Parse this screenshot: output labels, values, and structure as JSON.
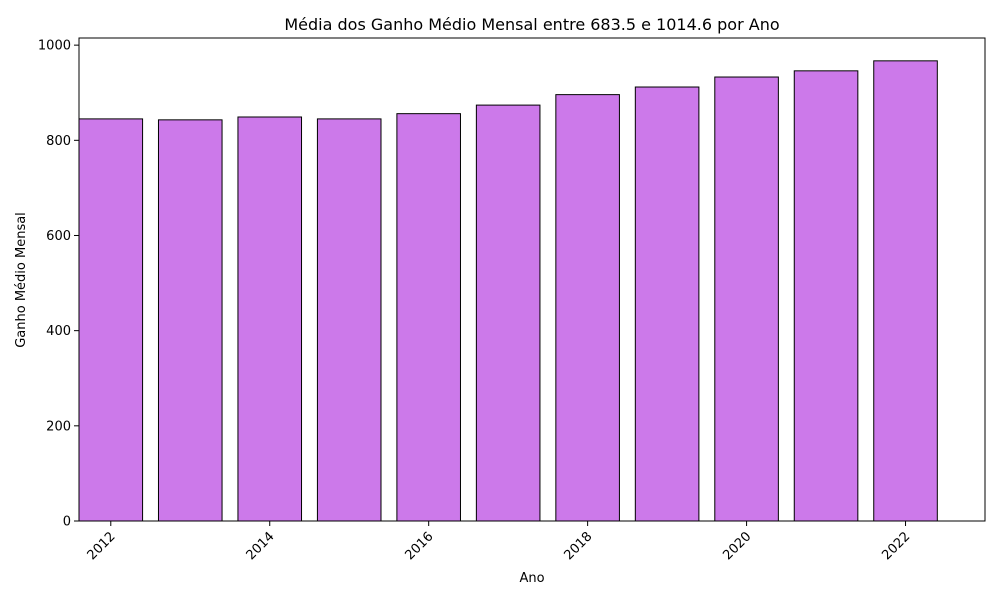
{
  "chart_data": {
    "type": "bar",
    "title": "Média dos Ganho Médio Mensal entre 683.5 e 1014.6 por Ano",
    "xlabel": "Ano",
    "ylabel": "Ganho Médio Mensal",
    "x": [
      2012,
      2013,
      2014,
      2015,
      2016,
      2017,
      2018,
      2019,
      2020,
      2021,
      2022
    ],
    "values": [
      845,
      843,
      849,
      845,
      856,
      874,
      896,
      912,
      933,
      946,
      967
    ],
    "xlim": [
      2011.6,
      2023.0
    ],
    "ylim": [
      0,
      1015
    ],
    "xticks": [
      2012,
      2014,
      2016,
      2018,
      2020,
      2022
    ],
    "yticks": [
      0,
      200,
      400,
      600,
      800,
      1000
    ],
    "xtick_rotation": 45,
    "bar_width": 0.8,
    "grid": false,
    "colors": {
      "bar_fill": "#cc79ea",
      "bar_edge": "#000000",
      "axis": "#000000"
    }
  }
}
